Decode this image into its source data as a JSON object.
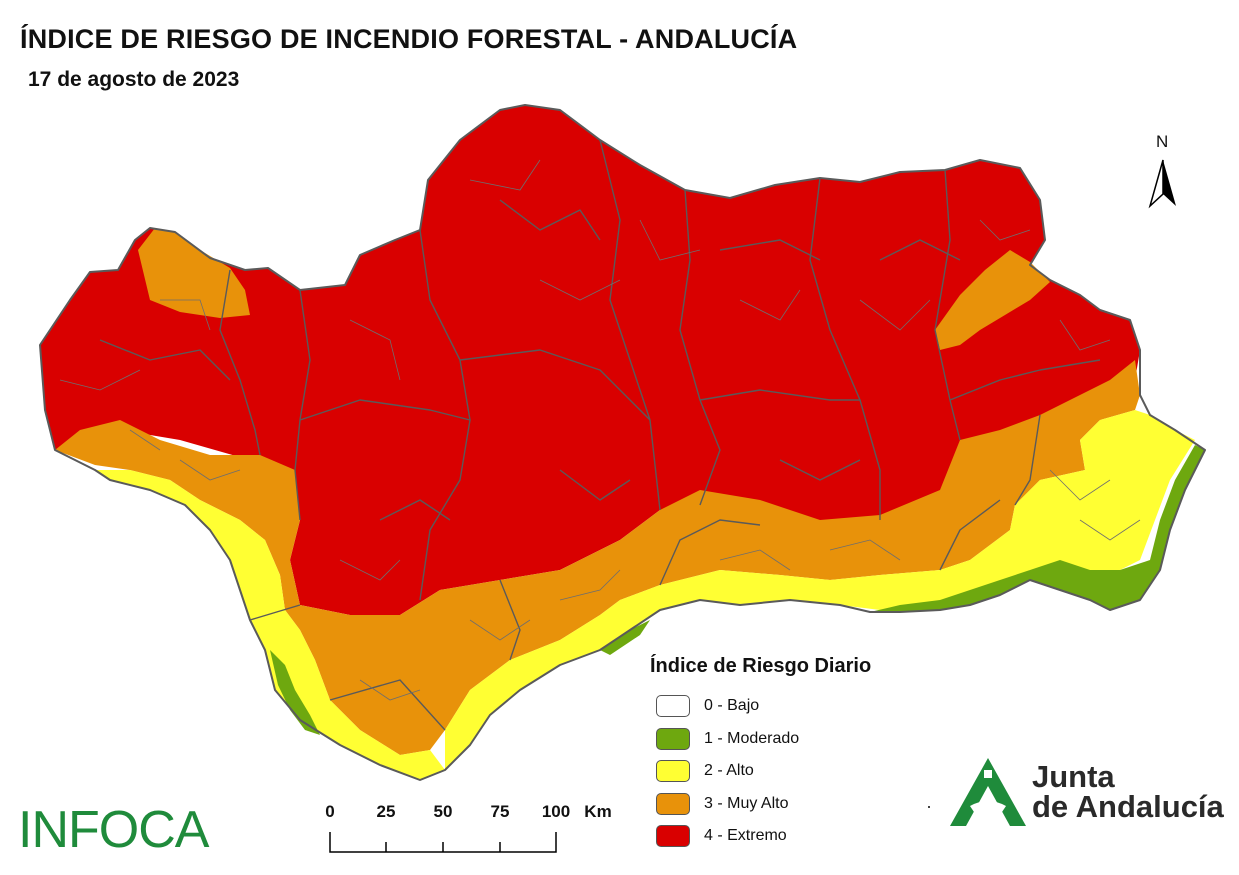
{
  "header": {
    "title": "ÍNDICE DE RIESGO DE INCENDIO FORESTAL - ANDALUCÍA",
    "date": "17 de agosto de 2023"
  },
  "north_arrow": {
    "label": "N"
  },
  "legend": {
    "title": "Índice de Riesgo Diario",
    "items": [
      {
        "label": "0 - Bajo",
        "color": "#ffffff"
      },
      {
        "label": "1 - Moderado",
        "color": "#6ea80f"
      },
      {
        "label": "2 - Alto",
        "color": "#ffff33"
      },
      {
        "label": "3 - Muy Alto",
        "color": "#e8920a"
      },
      {
        "label": "4 - Extremo",
        "color": "#d90000"
      }
    ]
  },
  "scale_bar": {
    "ticks": [
      "0",
      "25",
      "50",
      "75",
      "100"
    ],
    "unit": "Km"
  },
  "logos": {
    "infoca": "INFOCA",
    "junta_line1": "Junta",
    "junta_line2": "de Andalucía"
  },
  "colors": {
    "extremo": "#d90000",
    "muy_alto": "#e8920a",
    "alto": "#ffff33",
    "moderado": "#6ea80f",
    "borders": "#5a5a5a",
    "brand_green": "#1f8b3b"
  }
}
